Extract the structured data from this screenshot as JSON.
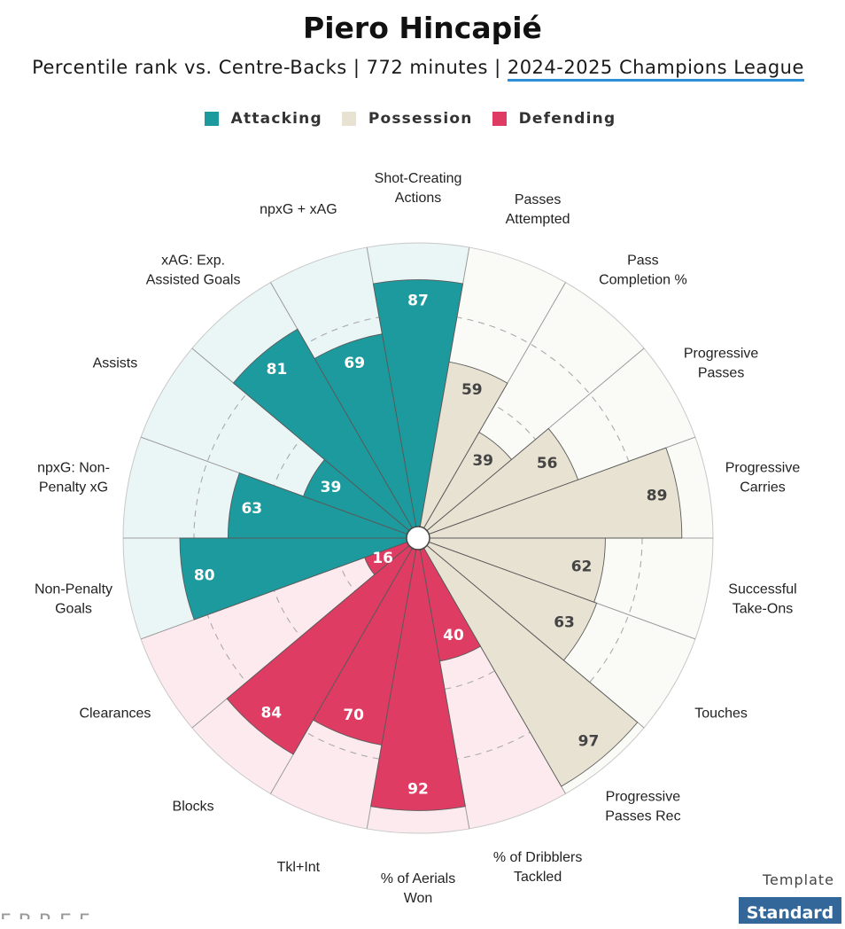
{
  "title": "Piero Hincapié",
  "subtitle": {
    "prefix": "Percentile rank vs. Centre-Backs | 772 minutes | ",
    "competition": "2024-2025 Champions League"
  },
  "legend": [
    {
      "label": "Attacking",
      "color": "#1c9a9e"
    },
    {
      "label": "Possession",
      "color": "#e8e2d2"
    },
    {
      "label": "Defending",
      "color": "#de3c62"
    }
  ],
  "template": {
    "label": "Template",
    "button": "Standard"
  },
  "logo_text": "FBREF",
  "chart_data": {
    "type": "polar-bar",
    "title": "Piero Hincapié",
    "subtitle": "Percentile rank vs. Centre-Backs | 772 minutes | 2024-2025 Champions League",
    "rmax": 100,
    "groups": {
      "Attacking": {
        "fill": "#1c9a9e",
        "bg": "#eaf5f5",
        "text": "#ffffff"
      },
      "Possession": {
        "fill": "#e8e2d2",
        "bg": "#fafaf7",
        "text": "#444444"
      },
      "Defending": {
        "fill": "#de3c62",
        "bg": "#fdeaee",
        "text": "#ffffff"
      }
    },
    "categories": [
      {
        "label": "Shot-Creating\nActions",
        "value": 87,
        "group": "Attacking"
      },
      {
        "label": "Passes\nAttempted",
        "value": 59,
        "group": "Possession"
      },
      {
        "label": "Pass\nCompletion %",
        "value": 39,
        "group": "Possession"
      },
      {
        "label": "Progressive\nPasses",
        "value": 56,
        "group": "Possession"
      },
      {
        "label": "Progressive\nCarries",
        "value": 89,
        "group": "Possession"
      },
      {
        "label": "Successful\nTake-Ons",
        "value": 62,
        "group": "Possession"
      },
      {
        "label": "Touches",
        "value": 63,
        "group": "Possession"
      },
      {
        "label": "Progressive\nPasses Rec",
        "value": 97,
        "group": "Possession"
      },
      {
        "label": "% of Dribblers\nTackled",
        "value": 40,
        "group": "Defending"
      },
      {
        "label": "% of Aerials\nWon",
        "value": 92,
        "group": "Defending"
      },
      {
        "label": "Tkl+Int",
        "value": 70,
        "group": "Defending"
      },
      {
        "label": "Blocks",
        "value": 84,
        "group": "Defending"
      },
      {
        "label": "Clearances",
        "value": 16,
        "group": "Defending"
      },
      {
        "label": "Non-Penalty\nGoals",
        "value": 80,
        "group": "Attacking"
      },
      {
        "label": "npxG: Non-\nPenalty xG",
        "value": 63,
        "group": "Attacking"
      },
      {
        "label": "Assists",
        "value": 39,
        "group": "Attacking"
      },
      {
        "label": "xAG: Exp.\nAssisted Goals",
        "value": 81,
        "group": "Attacking"
      },
      {
        "label": "npxG + xAG",
        "value": 69,
        "group": "Attacking"
      }
    ]
  }
}
